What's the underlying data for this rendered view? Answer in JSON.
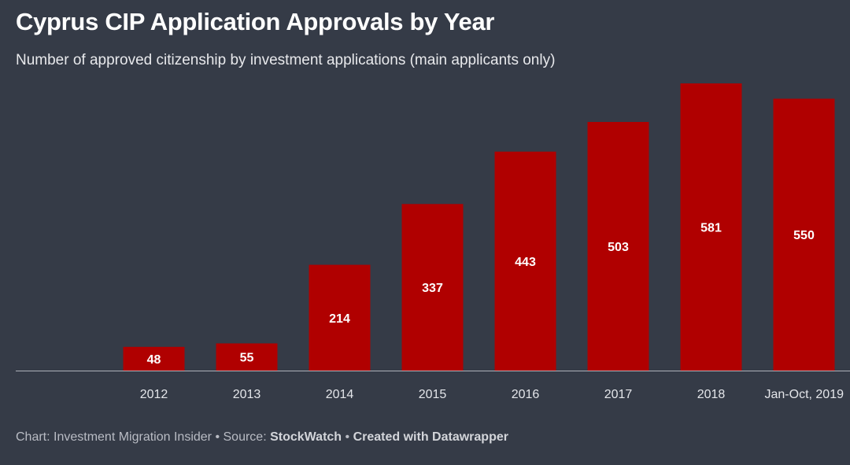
{
  "header": {
    "title": "Cyprus CIP Application Approvals by Year",
    "subtitle": "Number of approved citizenship by investment applications (main applicants only)"
  },
  "footer": {
    "chart_prefix": "Chart: Investment Migration Insider",
    "separator1": " • ",
    "source_prefix": "Source: ",
    "source_name": "StockWatch",
    "separator2": " • ",
    "created_with": "Created with Datawrapper"
  },
  "colors": {
    "background": "#353b47",
    "bar": "#b00000",
    "baseline": "#aeb2ba"
  },
  "chart_data": {
    "type": "bar",
    "title": "Cyprus CIP Application Approvals by Year",
    "subtitle": "Number of approved citizenship by investment applications (main applicants only)",
    "categories": [
      "2012",
      "2013",
      "2014",
      "2015",
      "2016",
      "2017",
      "2018",
      "Jan-Oct, 2019"
    ],
    "values": [
      48,
      55,
      214,
      337,
      443,
      503,
      581,
      550
    ],
    "xlabel": "",
    "ylabel": "",
    "ylim": [
      0,
      581
    ],
    "grid": false,
    "legend": "none",
    "data_labels": true
  }
}
